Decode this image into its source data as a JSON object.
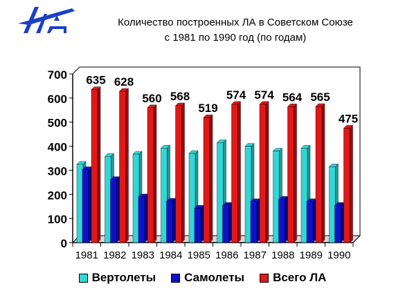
{
  "header": {
    "title_line1": "Количество построенных ЛА в Советском Союзе",
    "title_line2": "с 1981 по 1990 год (по годам)"
  },
  "logo": {
    "icon": "aviation-logo-icon",
    "color": "#1a3fc8"
  },
  "colors": {
    "helicopters": "#33d6d6",
    "planes": "#1010cc",
    "total": "#e01818"
  },
  "chart_data": {
    "type": "bar",
    "title": "Количество построенных ЛА в Советском Союзе с 1981 по 1990 год (по годам)",
    "xlabel": "",
    "ylabel": "",
    "categories": [
      "1981",
      "1982",
      "1983",
      "1984",
      "1985",
      "1986",
      "1987",
      "1988",
      "1989",
      "1990"
    ],
    "ylim": [
      0,
      700
    ],
    "yticks": [
      "0",
      "100",
      "200",
      "300",
      "400",
      "500",
      "600",
      "700"
    ],
    "series": [
      {
        "name": "Вертолеты",
        "values": [
          325,
          358,
          367,
          392,
          370,
          415,
          400,
          380,
          392,
          315
        ]
      },
      {
        "name": "Самолеты",
        "values": [
          303,
          262,
          190,
          172,
          143,
          155,
          170,
          180,
          170,
          155
        ]
      },
      {
        "name": "Всего ЛА",
        "values": [
          635,
          628,
          560,
          568,
          519,
          574,
          574,
          564,
          565,
          475
        ]
      }
    ],
    "data_labels": [
      "635",
      "628",
      "560",
      "568",
      "519",
      "574",
      "574",
      "564",
      "565",
      "475"
    ],
    "grid": false,
    "legend_position": "bottom"
  }
}
